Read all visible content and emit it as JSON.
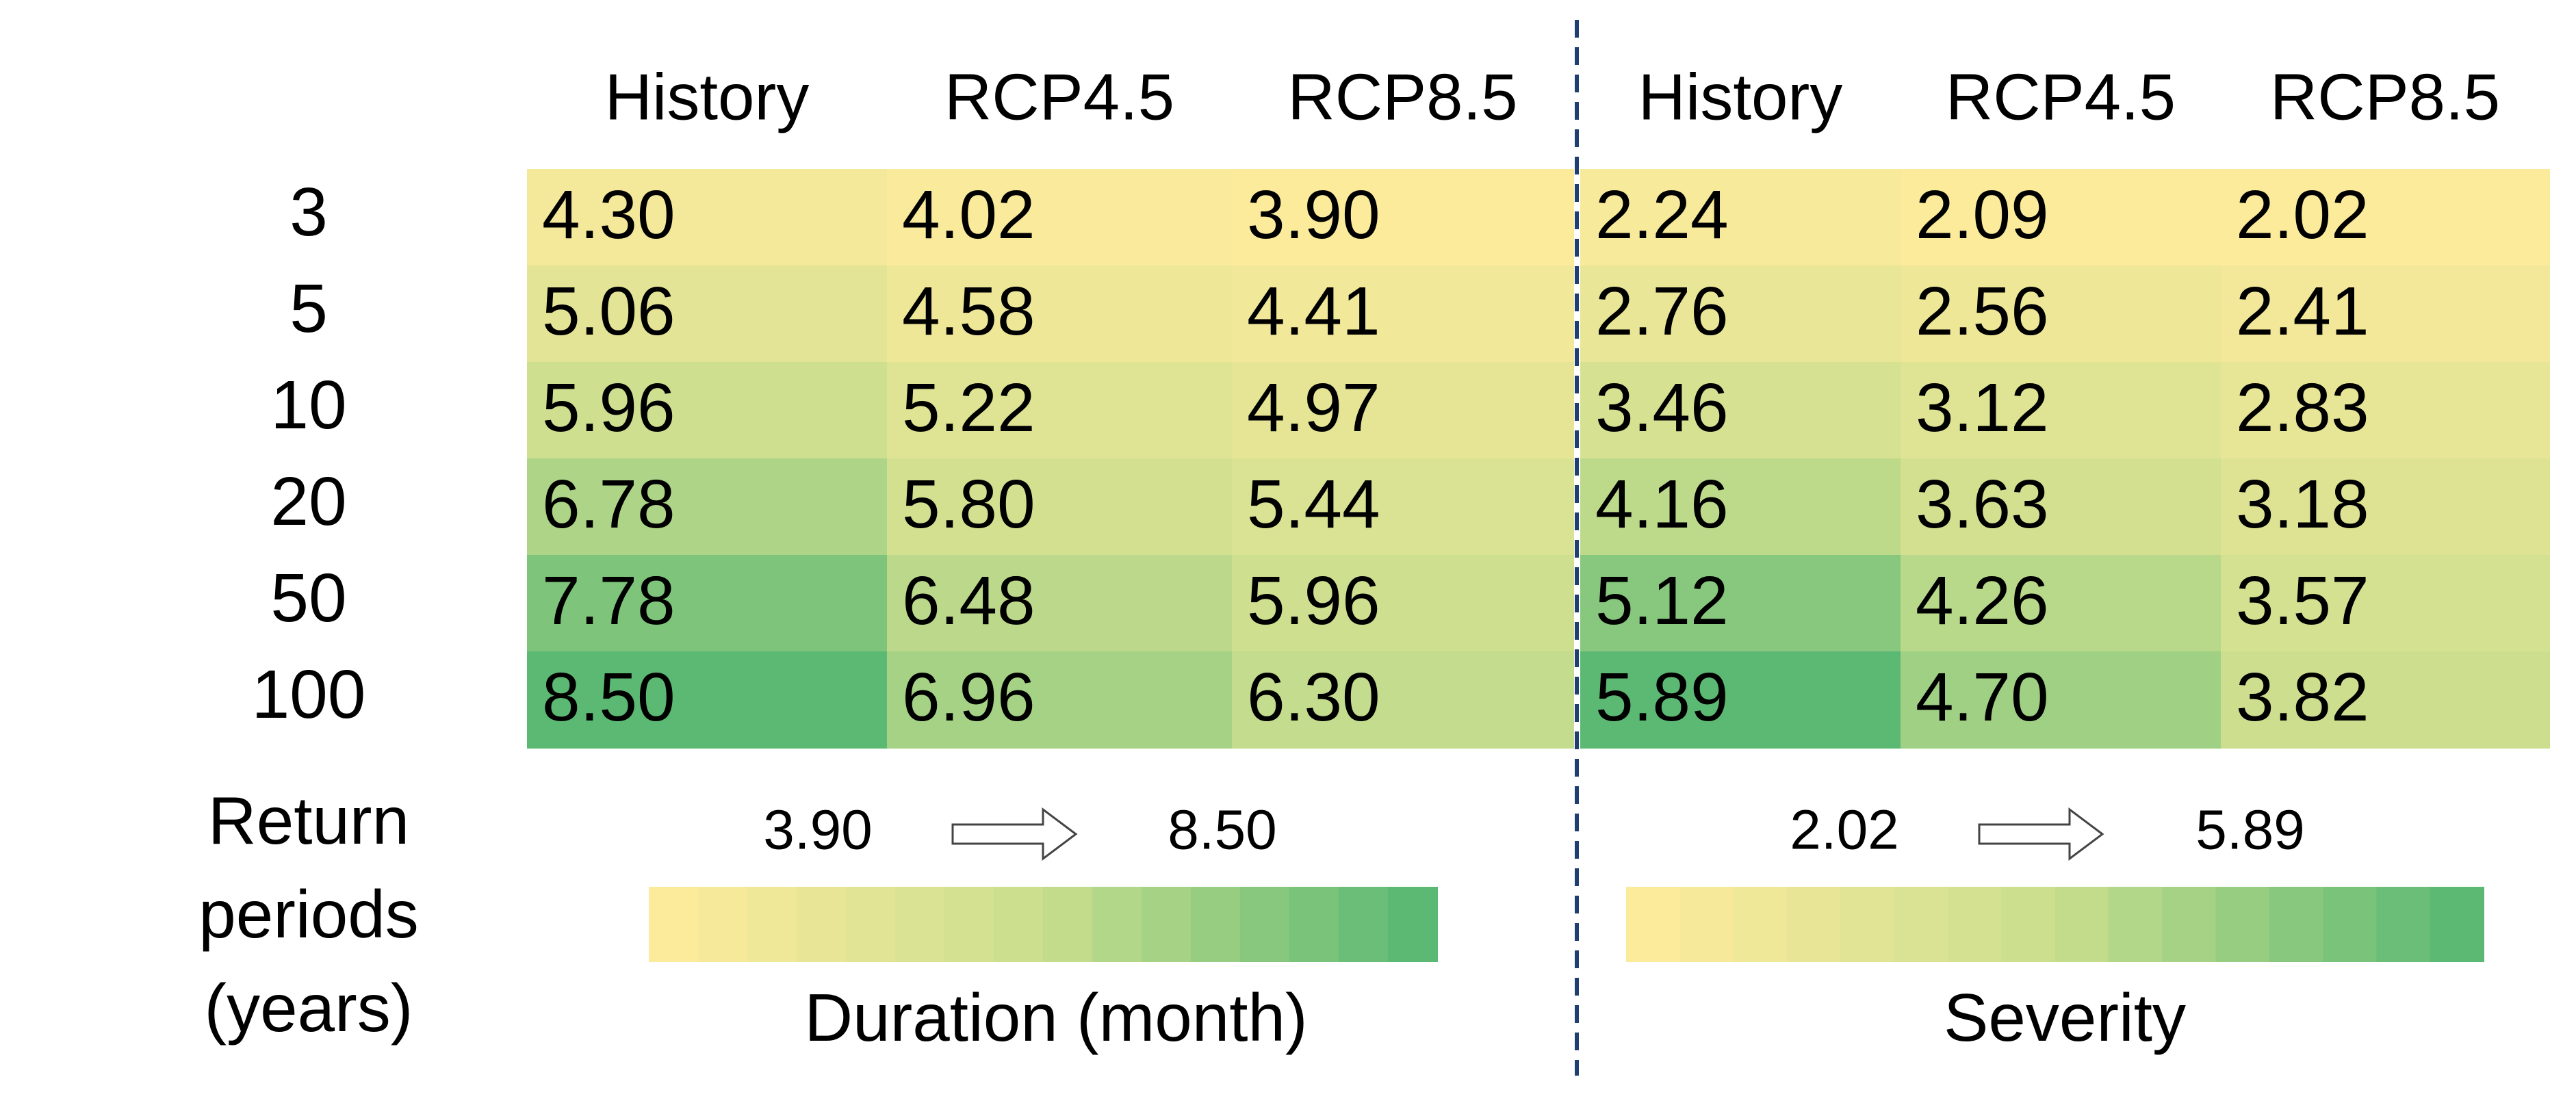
{
  "row_header_lines": [
    "Return",
    "periods",
    "(years)"
  ],
  "return_periods": [
    3,
    5,
    10,
    20,
    50,
    100
  ],
  "colors": [
    "#fdeb9c",
    "#c9de8e",
    "#5cb973"
  ],
  "panels": [
    {
      "columns": [
        "History",
        "RCP4.5",
        "RCP8.5"
      ],
      "values": [
        [
          4.3,
          4.02,
          3.9
        ],
        [
          5.06,
          4.58,
          4.41
        ],
        [
          5.96,
          5.22,
          4.97
        ],
        [
          6.78,
          5.8,
          5.44
        ],
        [
          7.78,
          6.48,
          5.96
        ],
        [
          8.5,
          6.96,
          6.3
        ]
      ],
      "value_labels": [
        [
          "4.30",
          "4.02",
          "3.90"
        ],
        [
          "5.06",
          "4.58",
          "4.41"
        ],
        [
          "5.96",
          "5.22",
          "4.97"
        ],
        [
          "6.78",
          "5.80",
          "5.44"
        ],
        [
          "7.78",
          "6.48",
          "5.96"
        ],
        [
          "8.50",
          "6.96",
          "6.30"
        ]
      ],
      "legend": {
        "min": {
          "value": 3.9,
          "label": "3.90"
        },
        "max": {
          "value": 8.5,
          "label": "8.50"
        },
        "title": "Duration (month)"
      }
    },
    {
      "columns": [
        "History",
        "RCP4.5",
        "RCP8.5"
      ],
      "values": [
        [
          2.24,
          2.09,
          2.02
        ],
        [
          2.76,
          2.56,
          2.41
        ],
        [
          3.46,
          3.12,
          2.83
        ],
        [
          4.16,
          3.63,
          3.18
        ],
        [
          5.12,
          4.26,
          3.57
        ],
        [
          5.89,
          4.7,
          3.82
        ]
      ],
      "value_labels": [
        [
          "2.24",
          "2.09",
          "2.02"
        ],
        [
          "2.76",
          "2.56",
          "2.41"
        ],
        [
          "3.46",
          "3.12",
          "2.83"
        ],
        [
          "4.16",
          "3.63",
          "3.18"
        ],
        [
          "5.12",
          "4.26",
          "3.57"
        ],
        [
          "5.89",
          "4.70",
          "3.82"
        ]
      ],
      "legend": {
        "min": {
          "value": 2.02,
          "label": "2.02"
        },
        "max": {
          "value": 5.89,
          "label": "5.89"
        },
        "title": "Severity"
      }
    }
  ]
}
